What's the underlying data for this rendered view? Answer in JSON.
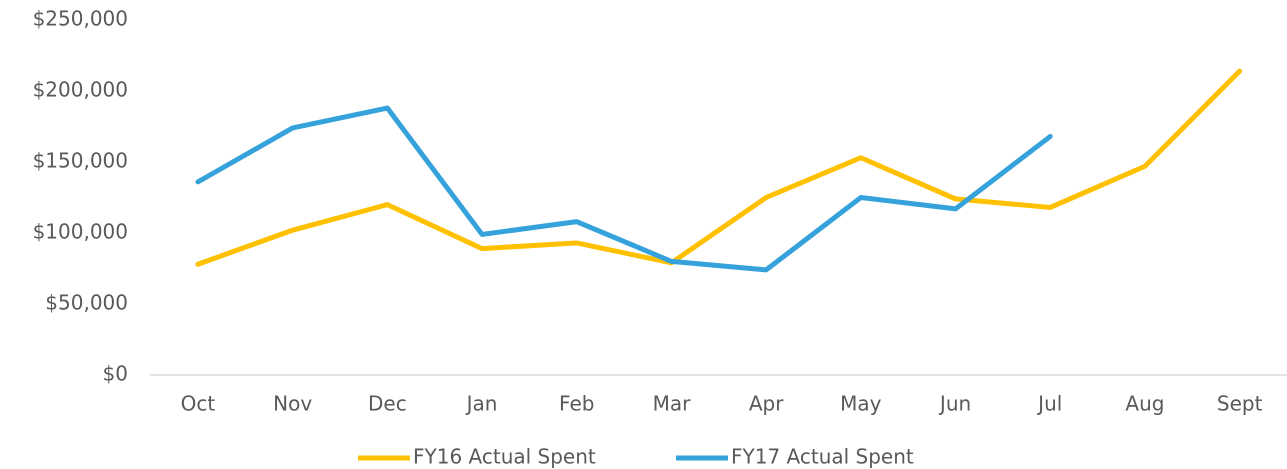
{
  "chart_data": {
    "type": "line",
    "categories": [
      "Oct",
      "Nov",
      "Dec",
      "Jan",
      "Feb",
      "Mar",
      "Apr",
      "May",
      "Jun",
      "Jul",
      "Aug",
      "Sept"
    ],
    "series": [
      {
        "name": "FY16 Actual Spent",
        "color": "#ffc000",
        "values": [
          78000,
          102000,
          120000,
          89000,
          93000,
          79000,
          125000,
          153000,
          124000,
          118000,
          147000,
          214000
        ]
      },
      {
        "name": "FY17 Actual Spent",
        "color": "#36a2db",
        "values": [
          136000,
          174000,
          188000,
          99000,
          108000,
          80000,
          74000,
          125000,
          117000,
          168000,
          null,
          null
        ]
      }
    ],
    "ylim": [
      0,
      250000
    ],
    "yticks": [
      {
        "value": 0,
        "label": "$0"
      },
      {
        "value": 50000,
        "label": "$50,000"
      },
      {
        "value": 100000,
        "label": "$100,000"
      },
      {
        "value": 150000,
        "label": "$150,000"
      },
      {
        "value": 200000,
        "label": "$200,000"
      },
      {
        "value": 250000,
        "label": "$250,000"
      }
    ],
    "grid": false,
    "legend": "bottom"
  }
}
